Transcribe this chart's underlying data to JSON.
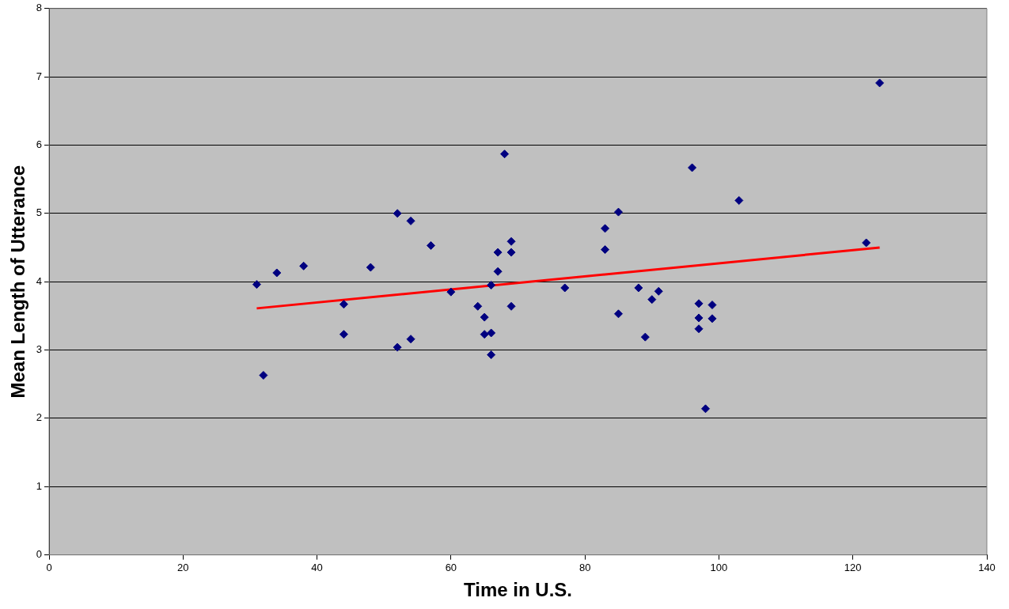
{
  "chart_data": {
    "type": "scatter",
    "xlabel": "Time in U.S.",
    "ylabel": "Mean Length of Utterance",
    "xlim": [
      0,
      140
    ],
    "xticks": [
      0,
      20,
      40,
      60,
      80,
      100,
      120,
      140
    ],
    "ylim": [
      0,
      8
    ],
    "yticks": [
      0,
      1,
      2,
      3,
      4,
      5,
      6,
      7,
      8
    ],
    "grid": "y",
    "legend": false,
    "series": [
      {
        "marker": "diamond",
        "color": "#000080",
        "x": [
          31,
          32,
          34,
          38,
          44,
          44,
          48,
          52,
          52,
          54,
          54,
          57,
          60,
          64,
          65,
          65,
          66,
          66,
          66,
          67,
          67,
          68,
          69,
          69,
          69,
          77,
          83,
          83,
          85,
          85,
          88,
          89,
          90,
          91,
          96,
          97,
          97,
          97,
          98,
          99,
          99,
          103,
          122,
          124
        ],
        "values": [
          3.96,
          2.63,
          4.13,
          4.23,
          3.67,
          3.23,
          4.21,
          5.0,
          3.04,
          4.89,
          3.16,
          4.53,
          3.85,
          3.64,
          3.48,
          3.23,
          3.25,
          2.93,
          3.95,
          4.43,
          4.15,
          5.87,
          4.59,
          4.43,
          3.64,
          3.91,
          4.78,
          4.47,
          5.02,
          3.53,
          3.91,
          3.19,
          3.74,
          3.86,
          5.67,
          3.68,
          3.47,
          3.31,
          2.14,
          3.66,
          3.46,
          5.19,
          4.57,
          6.91
        ]
      },
      {
        "type": "line",
        "marker": "none",
        "color": "#ff0000",
        "x": [
          31,
          124
        ],
        "values": [
          3.61,
          4.5
        ]
      }
    ]
  }
}
